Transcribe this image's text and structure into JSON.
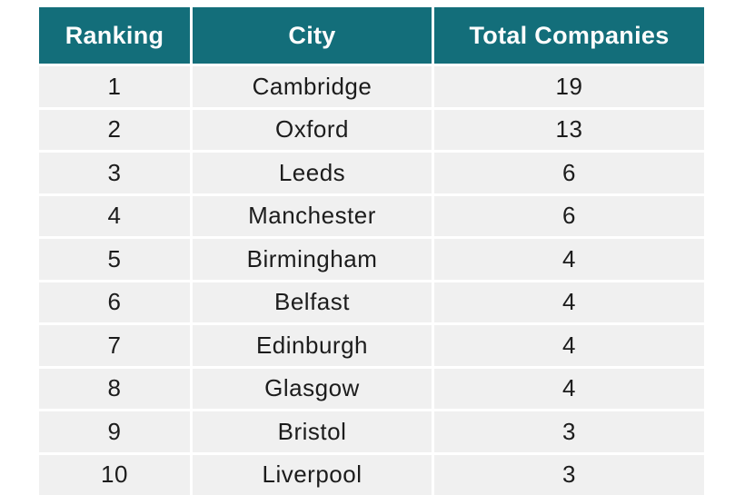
{
  "colors": {
    "header_bg": "#136e7a",
    "header_text": "#fdfdfd",
    "row_bg": "#f0f0f0",
    "divider": "#ffffff",
    "body_text": "#1c1c1c"
  },
  "table": {
    "headers": [
      "Ranking",
      "City",
      "Total Companies"
    ],
    "rows": [
      {
        "ranking": "1",
        "city": "Cambridge",
        "total_companies": "19"
      },
      {
        "ranking": "2",
        "city": "Oxford",
        "total_companies": "13"
      },
      {
        "ranking": "3",
        "city": "Leeds",
        "total_companies": "6"
      },
      {
        "ranking": "4",
        "city": "Manchester",
        "total_companies": "6"
      },
      {
        "ranking": "5",
        "city": "Birmingham",
        "total_companies": "4"
      },
      {
        "ranking": "6",
        "city": "Belfast",
        "total_companies": "4"
      },
      {
        "ranking": "7",
        "city": "Edinburgh",
        "total_companies": "4"
      },
      {
        "ranking": "8",
        "city": "Glasgow",
        "total_companies": "4"
      },
      {
        "ranking": "9",
        "city": "Bristol",
        "total_companies": "3"
      },
      {
        "ranking": "10",
        "city": "Liverpool",
        "total_companies": "3"
      }
    ]
  },
  "chart_data": {
    "type": "table",
    "columns": [
      "Ranking",
      "City",
      "Total Companies"
    ],
    "rows": [
      [
        1,
        "Cambridge",
        19
      ],
      [
        2,
        "Oxford",
        13
      ],
      [
        3,
        "Leeds",
        6
      ],
      [
        4,
        "Manchester",
        6
      ],
      [
        5,
        "Birmingham",
        4
      ],
      [
        6,
        "Belfast",
        4
      ],
      [
        7,
        "Edinburgh",
        4
      ],
      [
        8,
        "Glasgow",
        4
      ],
      [
        9,
        "Bristol",
        3
      ],
      [
        10,
        "Liverpool",
        3
      ]
    ]
  }
}
